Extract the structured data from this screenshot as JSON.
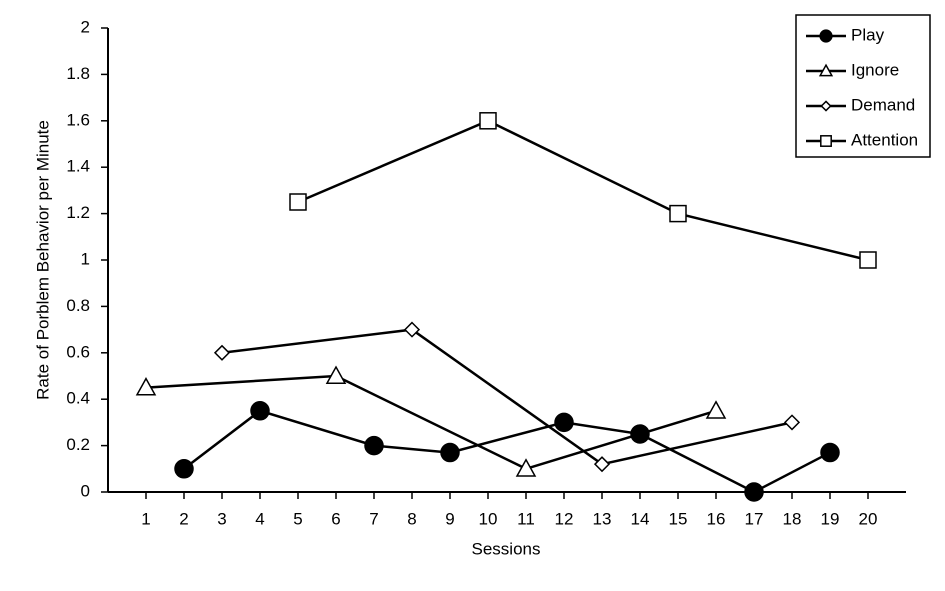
{
  "chart_data": {
    "type": "line",
    "x_label": "Sessions",
    "y_label": "Rate of Porblem Behavior per Minute",
    "xlim": [
      0,
      21
    ],
    "xticks": [
      1,
      2,
      3,
      4,
      5,
      6,
      7,
      8,
      9,
      10,
      11,
      12,
      13,
      14,
      15,
      16,
      17,
      18,
      19,
      20
    ],
    "ylim": [
      0,
      2
    ],
    "yticks": [
      0,
      0.2,
      0.4,
      0.6,
      0.8,
      1,
      1.2,
      1.4,
      1.6,
      1.8,
      2
    ],
    "legend": "upper right",
    "series": [
      {
        "name": "Play",
        "color": "#000000",
        "marker": "circle",
        "x": [
          2,
          4,
          7,
          9,
          12,
          14,
          17,
          19
        ],
        "values": [
          0.1,
          0.35,
          0.2,
          0.17,
          0.3,
          0.25,
          0,
          0.17
        ]
      },
      {
        "name": "Ignore",
        "color": "#000000",
        "marker": "triangle",
        "x": [
          1,
          6,
          11,
          16
        ],
        "values": [
          0.45,
          0.5,
          0.1,
          0.35
        ]
      },
      {
        "name": "Demand",
        "color": "#000000",
        "marker": "diamond",
        "x": [
          3,
          8,
          13,
          18
        ],
        "values": [
          0.6,
          0.7,
          0.12,
          0.3
        ]
      },
      {
        "name": "Attention",
        "color": "#000000",
        "marker": "square",
        "x": [
          5,
          10,
          15,
          20
        ],
        "values": [
          1.25,
          1.6,
          1.2,
          1
        ]
      }
    ]
  }
}
